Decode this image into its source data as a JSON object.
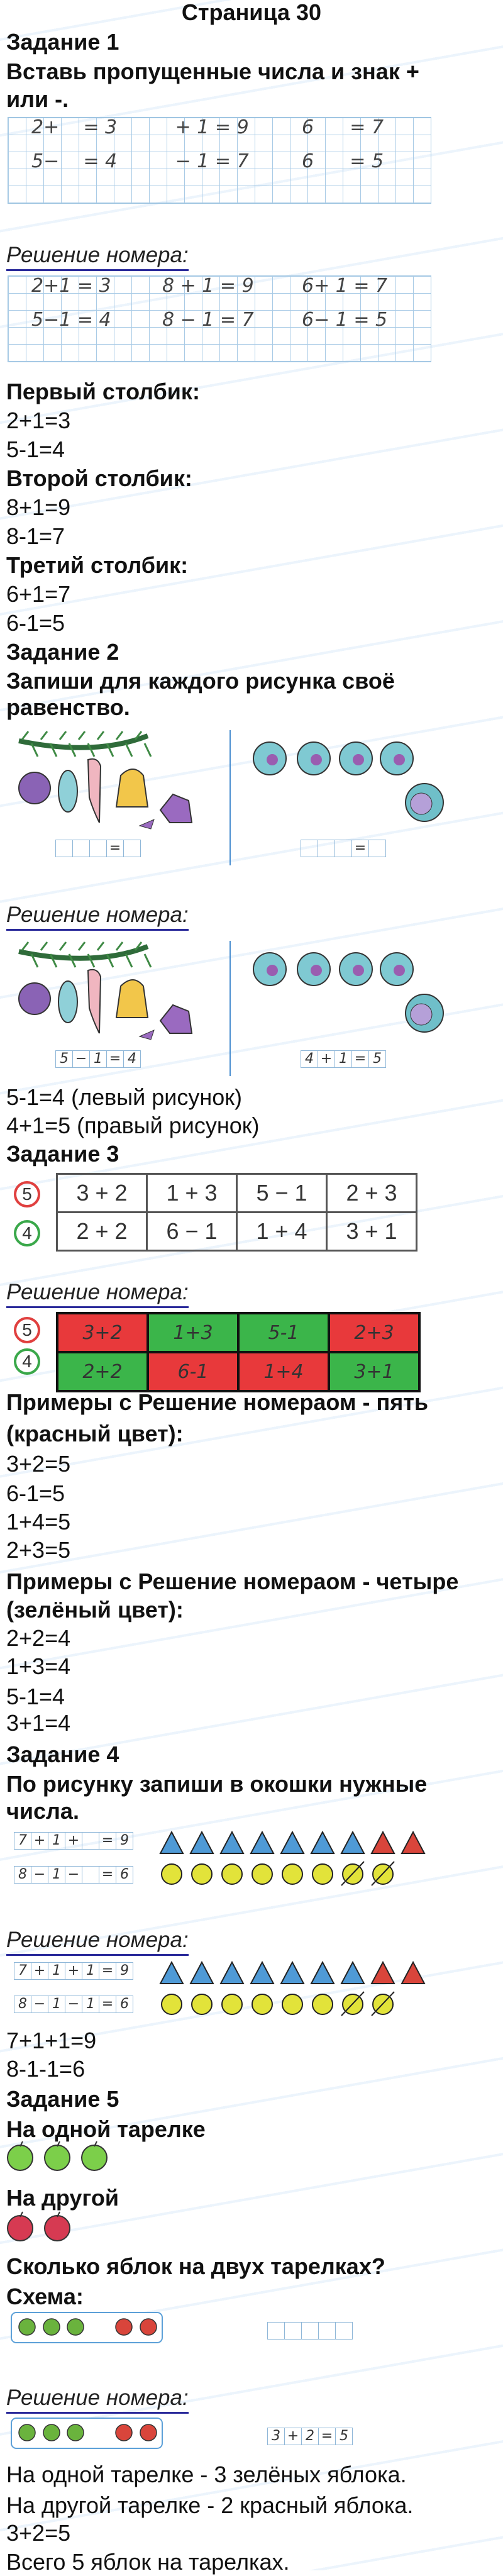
{
  "page_title": "Страница 30",
  "solution_label": "Решение номера:",
  "watermark": "Илюха-решает.РФ",
  "task1": {
    "heading": "Задание 1",
    "prompt_line1": "Вставь пропущенные числа и знак +",
    "prompt_line2": "или -.",
    "grid": [
      [
        "2+    = 3",
        "   + 1 = 9",
        "6      = 7"
      ],
      [
        "5−    = 4",
        "   − 1 = 7",
        "6      = 5"
      ]
    ],
    "grid_solved": [
      [
        "2+1 = 3",
        "8 + 1 = 9",
        "6+ 1 = 7"
      ],
      [
        "5−1 = 4",
        "8 − 1 = 7",
        "6− 1 = 5"
      ]
    ],
    "answers": [
      {
        "label": "Первый столбик:",
        "lines": [
          "2+1=3",
          "5-1=4"
        ]
      },
      {
        "label": "Второй столбик:",
        "lines": [
          "8+1=9",
          "8-1=7"
        ]
      },
      {
        "label": "Третий столбик:",
        "lines": [
          "6+1=7",
          "6-1=5"
        ]
      }
    ]
  },
  "task2": {
    "heading": "Задание 2",
    "prompt_line1": "Запиши для каждого рисунка своё",
    "prompt_line2": "равенство.",
    "boxes_blank": [
      "",
      "",
      "",
      "=",
      ""
    ],
    "boxes_left_solved": [
      "5",
      "−",
      "1",
      "=",
      "4"
    ],
    "boxes_right_solved": [
      "4",
      "+",
      "1",
      "=",
      "5"
    ],
    "answers": [
      "5-1=4 (левый рисунок)",
      "4+1=5 (правый рисунок)"
    ]
  },
  "task3": {
    "heading": "Задание 3",
    "row_labels": [
      "5",
      "4"
    ],
    "label_colors": [
      "#e0403f",
      "#3aa84a"
    ],
    "rows": [
      [
        "3 + 2",
        "1 + 3",
        "5 − 1",
        "2 + 3"
      ],
      [
        "2 + 2",
        "6 − 1",
        "1 + 4",
        "3 + 1"
      ]
    ],
    "rows_solved": [
      [
        "3+2",
        "1+3",
        "5-1",
        "2+3"
      ],
      [
        "2+2",
        "6-1",
        "1+4",
        "3+1"
      ]
    ],
    "solved_colors": [
      [
        "#e8393b",
        "#3bb54a",
        "#3bb54a",
        "#e8393b"
      ],
      [
        "#3bb54a",
        "#e8393b",
        "#e8393b",
        "#3bb54a"
      ]
    ],
    "five_heading_1": "Примеры с Решение номераом - пять",
    "five_heading_2": "(красный цвет):",
    "five": [
      "3+2=5",
      "6-1=5",
      "1+4=5",
      "2+3=5"
    ],
    "four_heading_1": "Примеры с Решение номераом - четыре",
    "four_heading_2": "(зелёный цвет):",
    "four": [
      "2+2=4",
      "1+3=4",
      "5-1=4",
      "3+1=4"
    ]
  },
  "task4": {
    "heading": "Задание 4",
    "prompt_line1": "По рисунку запиши в окошки нужные",
    "prompt_line2": "числа.",
    "eq_boxes": [
      [
        "7",
        "+",
        "1",
        "+",
        "",
        "=",
        "9"
      ],
      [
        "8",
        "−",
        "1",
        "−",
        "",
        "=",
        "6"
      ]
    ],
    "eq_boxes_solved": [
      [
        "7",
        "+",
        "1",
        "+",
        "1",
        "=",
        "9"
      ],
      [
        "8",
        "−",
        "1",
        "−",
        "1",
        "=",
        "6"
      ]
    ],
    "triangles": {
      "blue": 7,
      "red": 2,
      "blue_color": "#4f9ad6",
      "red_color": "#d9453b"
    },
    "circles": {
      "total": 8,
      "crossed": 2,
      "color": "#e2e33a"
    },
    "answers": [
      "7+1+1=9",
      "8-1-1=6"
    ]
  },
  "task5": {
    "heading": "Задание 5",
    "plate1_label": "На одной тарелке",
    "plate1_apples": 3,
    "plate2_label": "На другой",
    "plate2_apples": 2,
    "question": "Сколько яблок на двух тарелках?",
    "scheme_label": "Схема:",
    "scheme": {
      "green": 3,
      "red": 2
    },
    "boxes_blank": [
      "",
      "",
      "",
      "",
      ""
    ],
    "boxes_solved": [
      "3",
      "+",
      "2",
      "=",
      "5"
    ],
    "answers": [
      "На одной тарелке - 3 зелёных яблока.",
      "На другой тарелке - 2 красный яблока.",
      "3+2=5",
      "Всего 5 яблок на тарелках."
    ]
  }
}
